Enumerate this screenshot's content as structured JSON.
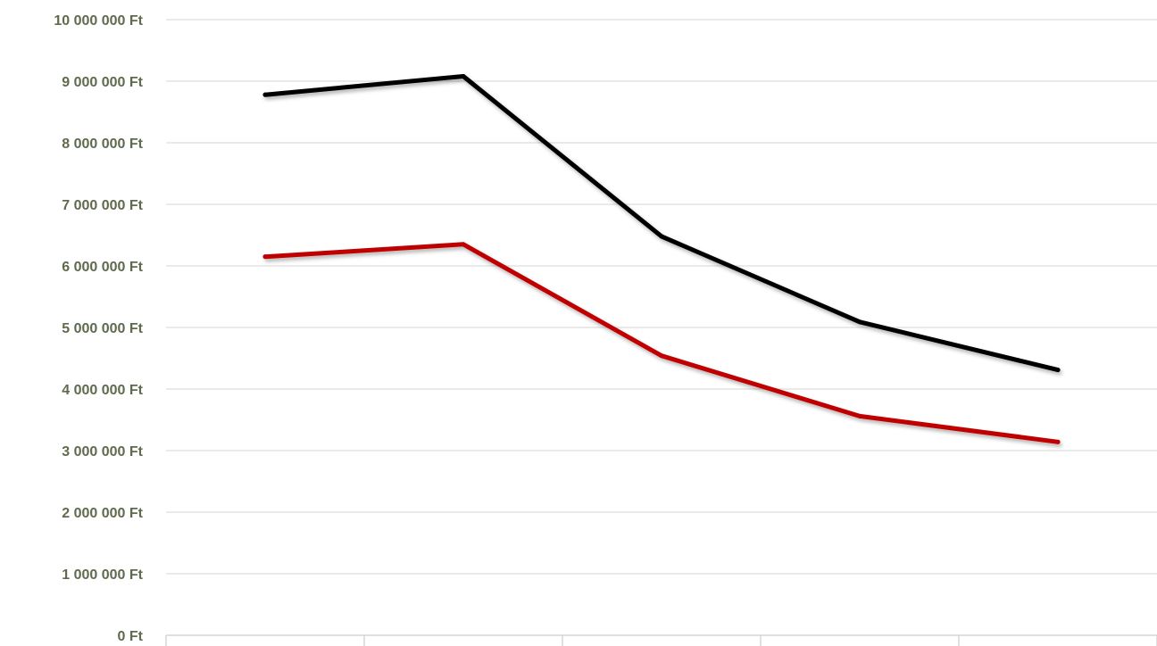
{
  "colors": {
    "background": "#ffffff",
    "gridline": "#e3e3e3",
    "axis": "#d6d6d6",
    "tick_label": "#5f6b4c"
  },
  "chart_data": {
    "type": "line",
    "title": "",
    "xlabel": "",
    "ylabel": "",
    "categories": [
      "",
      "",
      "",
      "",
      ""
    ],
    "ylim": [
      0,
      10000000
    ],
    "ytick_values": [
      0,
      1000000,
      2000000,
      3000000,
      4000000,
      5000000,
      6000000,
      7000000,
      8000000,
      9000000,
      10000000
    ],
    "ytick_labels": [
      "0 Ft",
      "1 000 000 Ft",
      "2 000 000 Ft",
      "3 000 000 Ft",
      "4 000 000 Ft",
      "5 000 000 Ft",
      "6 000 000 Ft",
      "7 000 000 Ft",
      "8 000 000 Ft",
      "9 000 000 Ft",
      "10 000 000 Ft"
    ],
    "grid": true,
    "legend": "none",
    "series": [
      {
        "color": "#000000",
        "values": [
          8780000,
          9080000,
          6480000,
          5090000,
          4310000
        ]
      },
      {
        "color": "#c00000",
        "values": [
          6150000,
          6350000,
          4540000,
          3560000,
          3140000
        ]
      }
    ]
  }
}
